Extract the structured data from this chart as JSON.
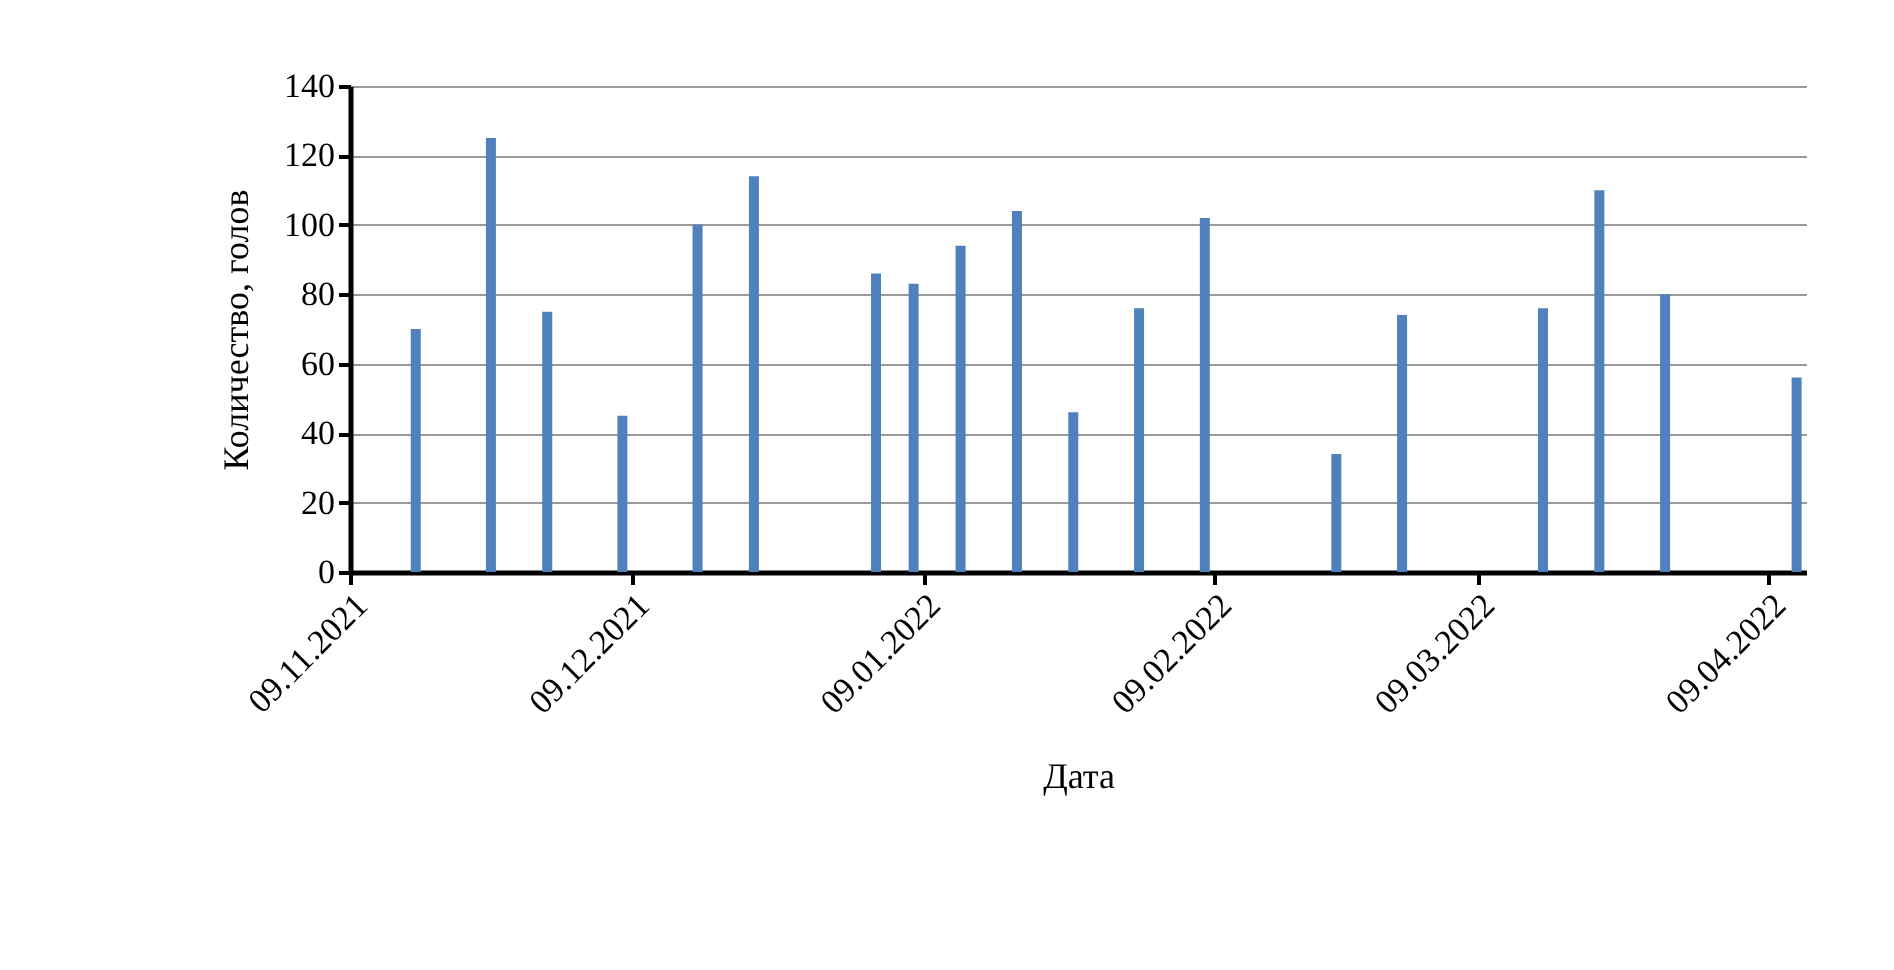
{
  "chart_data": {
    "type": "bar",
    "xlabel": "Дата",
    "ylabel": "Количество, голов",
    "x": [
      "2021-11-16",
      "2021-11-24",
      "2021-11-30",
      "2021-12-08",
      "2021-12-16",
      "2021-12-22",
      "2022-01-04",
      "2022-01-08",
      "2022-01-13",
      "2022-01-19",
      "2022-01-25",
      "2022-02-01",
      "2022-02-08",
      "2022-02-22",
      "2022-03-01",
      "2022-03-16",
      "2022-03-22",
      "2022-03-29",
      "2022-04-12"
    ],
    "series": [
      {
        "color": "#4f81bd",
        "values": [
          70,
          125,
          75,
          45,
          100,
          114,
          86,
          83,
          94,
          104,
          46,
          76,
          102,
          34,
          74,
          76,
          110,
          80,
          56
        ]
      }
    ],
    "xlim": [
      "2021-11-09",
      "2022-04-13"
    ],
    "xticks": [
      {
        "value": "2021-11-09",
        "label": "09.11.2021"
      },
      {
        "value": "2021-12-09",
        "label": "09.12.2021"
      },
      {
        "value": "2022-01-09",
        "label": "09.01.2022"
      },
      {
        "value": "2022-02-09",
        "label": "09.02.2022"
      },
      {
        "value": "2022-03-09",
        "label": "09.03.2022"
      },
      {
        "value": "2022-04-09",
        "label": "09.04.2022"
      }
    ],
    "ylim": [
      0,
      140
    ],
    "yticks": [
      0,
      20,
      40,
      60,
      80,
      100,
      120,
      140
    ],
    "grid": "y"
  }
}
